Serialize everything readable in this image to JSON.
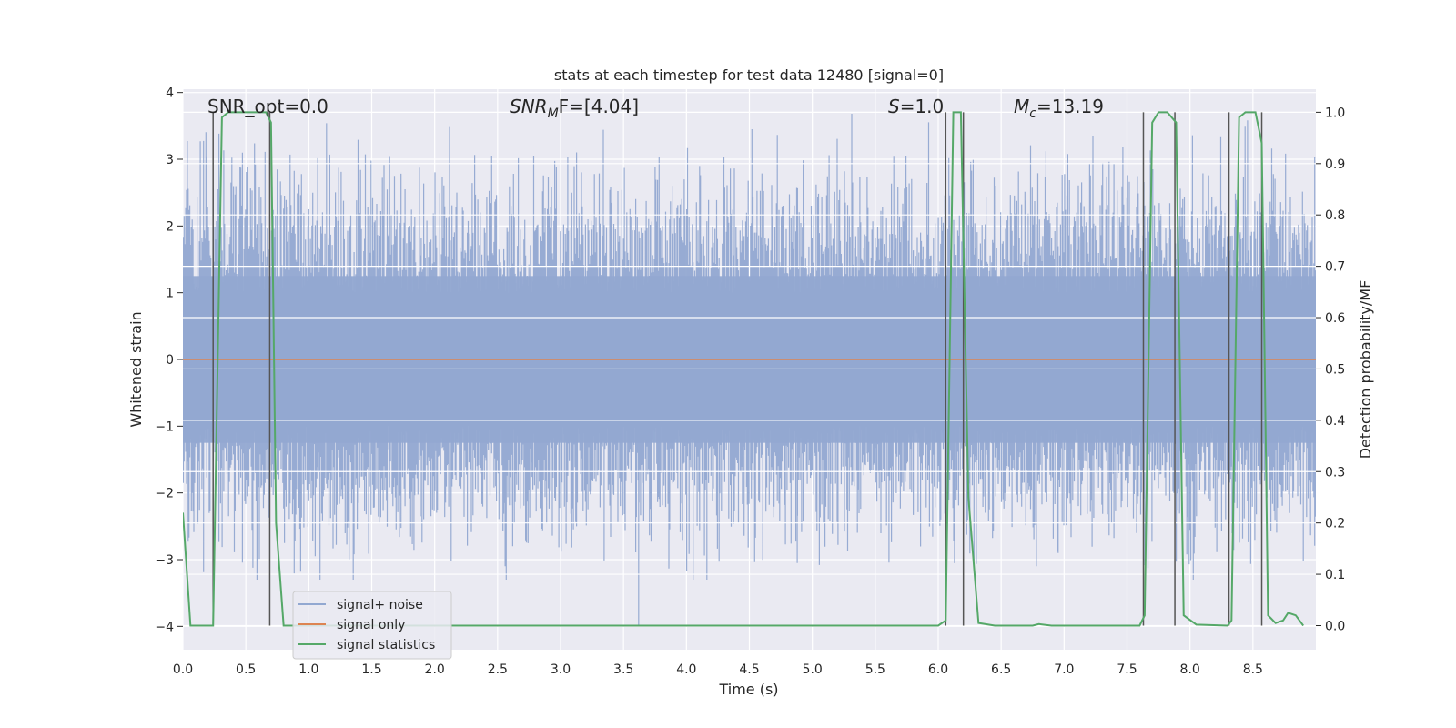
{
  "chart_data": {
    "type": "line",
    "title": "stats at each timestep for test data 12480 [signal=0]",
    "xlabel": "Time (s)",
    "ylabel": "Whitened strain",
    "y2label": "Detection probability/MF",
    "xlim": [
      0,
      9.0
    ],
    "ylim": [
      -4.35,
      4.05
    ],
    "y2lim": [
      -0.047,
      1.045
    ],
    "x_ticks": [
      0.0,
      0.5,
      1.0,
      1.5,
      2.0,
      2.5,
      3.0,
      3.5,
      4.0,
      4.5,
      5.0,
      5.5,
      6.0,
      6.5,
      7.0,
      7.5,
      8.0,
      8.5
    ],
    "x_tick_labels": [
      "0.0",
      "0.5",
      "1.0",
      "1.5",
      "2.0",
      "2.5",
      "3.0",
      "3.5",
      "4.0",
      "4.5",
      "5.0",
      "5.5",
      "6.0",
      "6.5",
      "7.0",
      "7.5",
      "8.0",
      "8.5"
    ],
    "y_ticks": [
      4,
      3,
      2,
      1,
      0,
      -1,
      -2,
      -3,
      -4
    ],
    "y_tick_labels": [
      "4",
      "3",
      "2",
      "1",
      "0",
      "−1",
      "−2",
      "−3",
      "−4"
    ],
    "y2_ticks": [
      1.0,
      0.9,
      0.8,
      0.7,
      0.6,
      0.5,
      0.4,
      0.3,
      0.2,
      0.1,
      0.0
    ],
    "y2_tick_labels": [
      "1.0",
      "0.9",
      "0.8",
      "0.7",
      "0.6",
      "0.5",
      "0.4",
      "0.3",
      "0.2",
      "0.1",
      "0.0"
    ],
    "grid": true,
    "legend": {
      "position": "lower-left",
      "entries": [
        {
          "label": "signal+ noise",
          "color": "#92a8d1"
        },
        {
          "label": "signal only",
          "color": "#dd8452"
        },
        {
          "label": "signal statistics",
          "color": "#55a868"
        }
      ]
    },
    "annotations": [
      {
        "id": "snr-opt",
        "text_pre": "SNR_opt=0.0",
        "sub": "",
        "text_post": "",
        "italic_pre": false
      },
      {
        "id": "snr-mf",
        "text_pre": "SNR",
        "sub": "M",
        "text_post": "F=[4.04]",
        "italic_pre": true
      },
      {
        "id": "s-stat",
        "text_pre": "S",
        "sub": "",
        "text_post": "=1.0",
        "italic_pre": true
      },
      {
        "id": "mchirp",
        "text_pre": "M",
        "sub": "c",
        "text_post": "=13.19",
        "italic_pre": true
      }
    ],
    "noise_series": {
      "name": "signal+ noise",
      "color": "#92a8d1",
      "samples": 9000,
      "envelope": 1.35,
      "spike_max": 3.8,
      "notable_spikes": [
        {
          "x": 3.62,
          "y": -4.0
        },
        {
          "x": 4.52,
          "y": 3.45
        },
        {
          "x": 6.78,
          "y": -3.1
        },
        {
          "x": 2.56,
          "y": -3.1
        },
        {
          "x": 4.88,
          "y": -3.05
        }
      ]
    },
    "series": [
      {
        "name": "signal only",
        "color": "#dd8452",
        "x": [
          0.0,
          9.0
        ],
        "y": [
          0.0,
          0.0
        ]
      },
      {
        "name": "signal statistics",
        "color": "#55a868",
        "axis": "right",
        "x": [
          0.0,
          0.06,
          0.24,
          0.31,
          0.36,
          0.66,
          0.7,
          0.74,
          0.8,
          6.0,
          6.06,
          6.12,
          6.18,
          6.24,
          6.32,
          6.45,
          6.75,
          6.8,
          6.9,
          7.6,
          7.64,
          7.7,
          7.75,
          7.82,
          7.89,
          7.95,
          8.05,
          8.3,
          8.33,
          8.39,
          8.44,
          8.52,
          8.57,
          8.62,
          8.68,
          8.74,
          8.78,
          8.84,
          8.9
        ],
        "y": [
          0.22,
          0.0,
          0.0,
          0.99,
          1.0,
          1.0,
          0.98,
          0.2,
          0.0,
          0.0,
          0.01,
          1.0,
          1.0,
          0.25,
          0.005,
          0.0,
          0.0,
          0.003,
          0.0,
          0.0,
          0.02,
          0.98,
          1.0,
          1.0,
          0.98,
          0.02,
          0.002,
          0.0,
          0.01,
          0.99,
          1.0,
          1.0,
          0.94,
          0.02,
          0.005,
          0.01,
          0.025,
          0.02,
          0.0
        ]
      }
    ],
    "vlines": [
      0.24,
      0.69,
      6.06,
      6.2,
      7.63,
      7.88,
      8.31,
      8.57
    ],
    "vline_color": "#555555"
  }
}
